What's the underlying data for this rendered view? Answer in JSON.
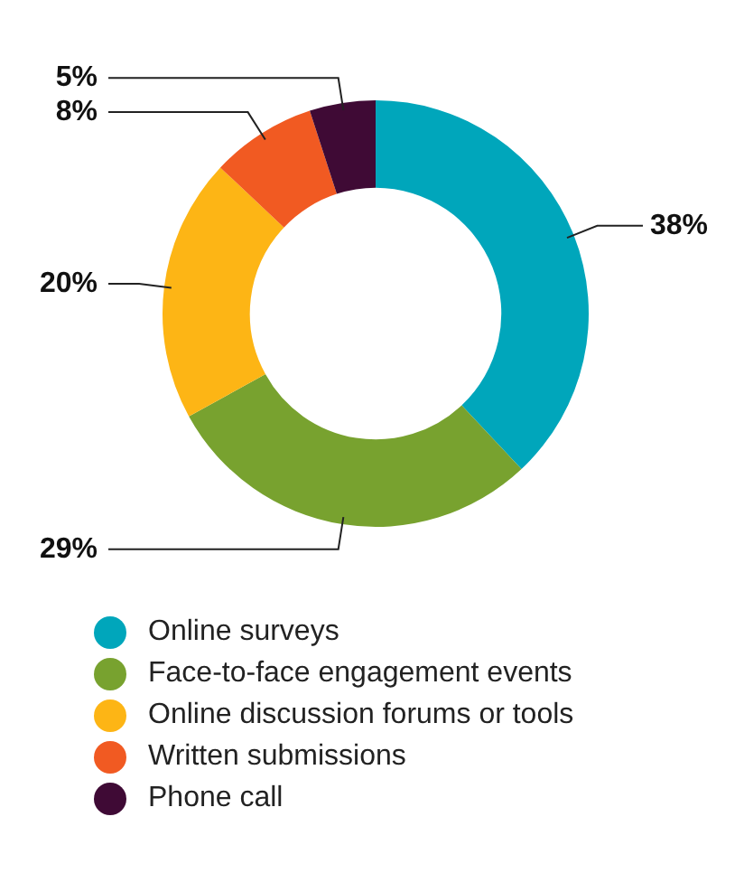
{
  "chart_data": {
    "type": "donut",
    "categories": [
      "Online surveys",
      "Face-to-face engagement events",
      "Online discussion forums or tools",
      "Written submissions",
      "Phone call"
    ],
    "values": [
      38,
      29,
      20,
      8,
      5
    ],
    "colors": [
      "#00a6bb",
      "#78a22f",
      "#fdb515",
      "#f15a22",
      "#3f0a35"
    ],
    "value_labels": [
      "38%",
      "29%",
      "20%",
      "8%",
      "5%"
    ],
    "legend": "bottom"
  }
}
